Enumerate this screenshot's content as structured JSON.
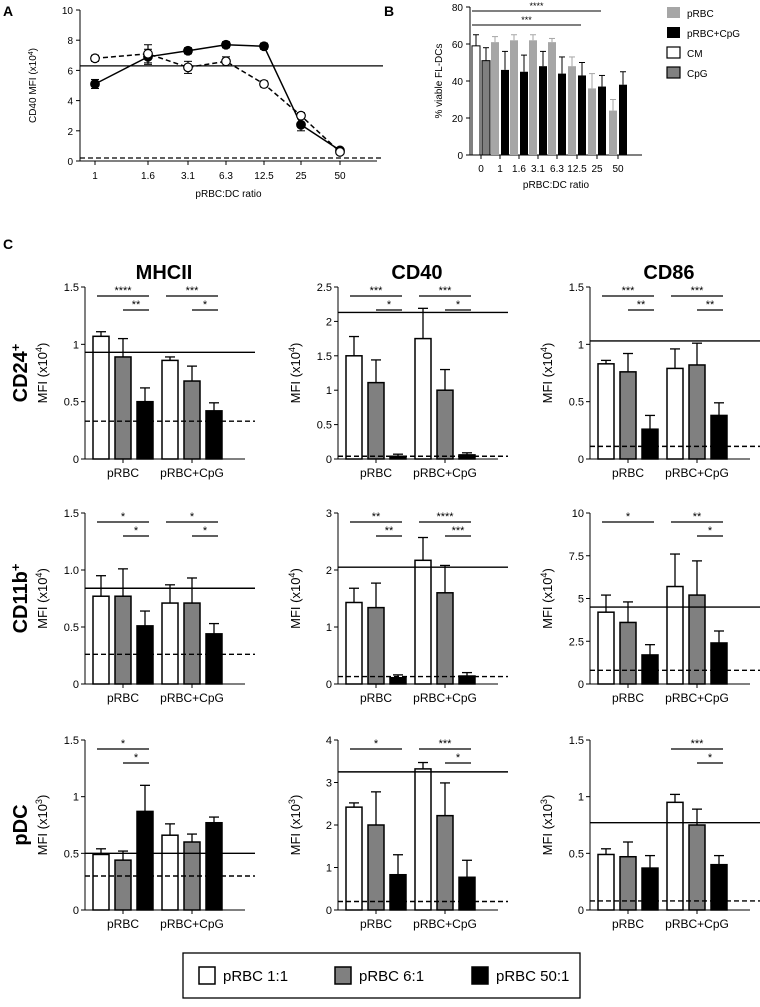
{
  "panel_labels": {
    "a": "A",
    "b": "B",
    "c": "C"
  },
  "chart_data": [
    {
      "id": "A",
      "type": "line",
      "ylabel_main": "CD40 MFI (x10",
      "ylabel_sup": "4",
      "ylabel_end": ")",
      "xlabel": "pRBC:DC ratio",
      "categories": [
        "1",
        "1.6",
        "3.1",
        "6.3",
        "12.5",
        "25",
        "50"
      ],
      "ylim": [
        0,
        10
      ],
      "yticks": [
        "0",
        "2",
        "4",
        "6",
        "8",
        "10"
      ],
      "series": [
        {
          "name": "filled",
          "style": "solid",
          "marker": "filled",
          "values": [
            5.1,
            6.9,
            7.3,
            7.7,
            7.6,
            2.4,
            0.7
          ],
          "errors": [
            0.3,
            0.5,
            0.2,
            0.2,
            0.2,
            0.4,
            0.1
          ]
        },
        {
          "name": "open",
          "style": "dashed",
          "marker": "open",
          "values": [
            6.8,
            7.1,
            6.2,
            6.6,
            5.1,
            3.0,
            0.6
          ],
          "errors": [
            0.2,
            0.6,
            0.4,
            0.3,
            0.2,
            0.2,
            0.1
          ]
        }
      ],
      "hline_solid": 6.3,
      "hline_dashed": 0.2
    },
    {
      "id": "B",
      "type": "bar",
      "ylabel": "% viable FL-DCs",
      "xlabel": "pRBC:DC ratio",
      "categories": [
        "0",
        "1",
        "1.6",
        "3.1",
        "6.3",
        "12.5",
        "25",
        "50"
      ],
      "ylim": [
        0,
        80
      ],
      "yticks": [
        "0",
        "20",
        "40",
        "60",
        "80"
      ],
      "legend": [
        {
          "label": "pRBC",
          "color": "#a6a6a6",
          "outline": false
        },
        {
          "label": "pRBC+CpG",
          "color": "#000000",
          "outline": false
        },
        {
          "label": "CM",
          "color": "#ffffff",
          "outline": true
        },
        {
          "label": "CpG",
          "color": "#808080",
          "outline": true
        }
      ],
      "first_group": [
        {
          "series": "CM",
          "value": 59,
          "error": 6
        },
        {
          "series": "CpG",
          "value": 51,
          "error": 7
        }
      ],
      "pRBC": [
        61,
        62,
        62,
        61,
        48,
        36,
        24
      ],
      "pRBC_err": [
        3,
        3,
        3,
        2,
        5,
        8,
        6
      ],
      "pRBC_CpG": [
        46,
        45,
        48,
        44,
        43,
        37,
        38
      ],
      "pRBC_CpG_err": [
        10,
        9,
        8,
        9,
        7,
        6,
        7
      ],
      "significance": [
        {
          "label": "****",
          "from": "0",
          "to": "25"
        },
        {
          "label": "***",
          "from": "0",
          "to": "12.5"
        }
      ]
    }
  ],
  "panel_c": {
    "columns": [
      "MHCII",
      "CD40",
      "CD86"
    ],
    "rows": [
      {
        "label": "CD24",
        "sup": "+"
      },
      {
        "label": "CD11b",
        "sup": "+"
      },
      {
        "label": "pDC",
        "sup": ""
      }
    ],
    "group_labels": [
      "pRBC",
      "pRBC+CpG"
    ],
    "ylabel_prefix": "MFI (x10",
    "ylabel_suffix": ")",
    "charts": [
      {
        "row": 0,
        "col": 0,
        "type": "bar",
        "exp": "4",
        "ymax": 1.5,
        "yticks": [
          "0",
          "0.5",
          "1",
          "1.5"
        ],
        "values": [
          [
            1.07,
            0.89,
            0.5
          ],
          [
            0.86,
            0.68,
            0.42
          ]
        ],
        "errors": [
          [
            0.04,
            0.16,
            0.12
          ],
          [
            0.03,
            0.13,
            0.07
          ]
        ],
        "hline_solid": 0.93,
        "hline_dashed": 0.33,
        "sig": [
          {
            "g": 0,
            "a": 0,
            "b": 2,
            "label": "****"
          },
          {
            "g": 0,
            "a": 1,
            "b": 2,
            "label": "**"
          },
          {
            "g": 1,
            "a": 0,
            "b": 2,
            "label": "***"
          },
          {
            "g": 1,
            "a": 1,
            "b": 2,
            "label": "*"
          }
        ]
      },
      {
        "row": 0,
        "col": 1,
        "type": "bar",
        "exp": "4",
        "ymax": 2.5,
        "yticks": [
          "0",
          "0.5",
          "1",
          "1.5",
          "2",
          "2.5"
        ],
        "values": [
          [
            1.5,
            1.11,
            0.04
          ],
          [
            1.75,
            1.0,
            0.06
          ]
        ],
        "errors": [
          [
            0.28,
            0.33,
            0.03
          ],
          [
            0.44,
            0.3,
            0.03
          ]
        ],
        "hline_solid": 2.13,
        "hline_dashed": 0.04,
        "sig": [
          {
            "g": 0,
            "a": 0,
            "b": 2,
            "label": "***"
          },
          {
            "g": 0,
            "a": 1,
            "b": 2,
            "label": "*"
          },
          {
            "g": 1,
            "a": 0,
            "b": 2,
            "label": "***"
          },
          {
            "g": 1,
            "a": 1,
            "b": 2,
            "label": "*"
          }
        ]
      },
      {
        "row": 0,
        "col": 2,
        "type": "bar",
        "exp": "4",
        "ymax": 1.5,
        "yticks": [
          "0",
          "0.5",
          "1",
          "1.5"
        ],
        "values": [
          [
            0.83,
            0.76,
            0.26
          ],
          [
            0.79,
            0.82,
            0.38
          ]
        ],
        "errors": [
          [
            0.03,
            0.16,
            0.12
          ],
          [
            0.17,
            0.19,
            0.11
          ]
        ],
        "hline_solid": 1.03,
        "hline_dashed": 0.11,
        "sig": [
          {
            "g": 0,
            "a": 0,
            "b": 2,
            "label": "***"
          },
          {
            "g": 0,
            "a": 1,
            "b": 2,
            "label": "**"
          },
          {
            "g": 1,
            "a": 0,
            "b": 2,
            "label": "***"
          },
          {
            "g": 1,
            "a": 1,
            "b": 2,
            "label": "**"
          }
        ]
      },
      {
        "row": 1,
        "col": 0,
        "type": "bar",
        "exp": "4",
        "ymax": 1.5,
        "yticks": [
          "0",
          "0.5",
          "1.0",
          "1.5"
        ],
        "values": [
          [
            0.77,
            0.77,
            0.51
          ],
          [
            0.71,
            0.71,
            0.44
          ]
        ],
        "errors": [
          [
            0.18,
            0.24,
            0.13
          ],
          [
            0.16,
            0.22,
            0.09
          ]
        ],
        "hline_solid": 0.84,
        "hline_dashed": 0.26,
        "sig": [
          {
            "g": 0,
            "a": 0,
            "b": 2,
            "label": "*"
          },
          {
            "g": 0,
            "a": 1,
            "b": 2,
            "label": "*"
          },
          {
            "g": 1,
            "a": 0,
            "b": 2,
            "label": "*"
          },
          {
            "g": 1,
            "a": 1,
            "b": 2,
            "label": "*"
          }
        ]
      },
      {
        "row": 1,
        "col": 1,
        "type": "bar",
        "exp": "4",
        "ymax": 3,
        "yticks": [
          "0",
          "1",
          "2",
          "3"
        ],
        "values": [
          [
            1.43,
            1.34,
            0.11
          ],
          [
            2.17,
            1.6,
            0.14
          ]
        ],
        "errors": [
          [
            0.25,
            0.43,
            0.05
          ],
          [
            0.4,
            0.48,
            0.06
          ]
        ],
        "hline_solid": 2.05,
        "hline_dashed": 0.13,
        "sig": [
          {
            "g": 0,
            "a": 0,
            "b": 2,
            "label": "**"
          },
          {
            "g": 0,
            "a": 1,
            "b": 2,
            "label": "**"
          },
          {
            "g": 1,
            "a": 0,
            "b": 2,
            "label": "****"
          },
          {
            "g": 1,
            "a": 1,
            "b": 2,
            "label": "***"
          }
        ]
      },
      {
        "row": 1,
        "col": 2,
        "type": "bar",
        "exp": "4",
        "ymax": 10,
        "yticks": [
          "0",
          "2.5",
          "5",
          "7.5",
          "10"
        ],
        "values": [
          [
            4.2,
            3.6,
            1.7
          ],
          [
            5.7,
            5.2,
            2.4
          ]
        ],
        "errors": [
          [
            1.0,
            1.2,
            0.6
          ],
          [
            1.9,
            2.0,
            0.7
          ]
        ],
        "hline_solid": 4.5,
        "hline_dashed": 0.8,
        "sig": [
          {
            "g": 0,
            "a": 0,
            "b": 2,
            "label": "*"
          },
          {
            "g": 1,
            "a": 0,
            "b": 2,
            "label": "**"
          },
          {
            "g": 1,
            "a": 1,
            "b": 2,
            "label": "*"
          }
        ]
      },
      {
        "row": 2,
        "col": 0,
        "type": "bar",
        "exp": "3",
        "ymax": 1.5,
        "yticks": [
          "0",
          "0.5",
          "1",
          "1.5"
        ],
        "values": [
          [
            0.49,
            0.44,
            0.87
          ],
          [
            0.66,
            0.6,
            0.77
          ]
        ],
        "errors": [
          [
            0.05,
            0.08,
            0.23
          ],
          [
            0.1,
            0.07,
            0.05
          ]
        ],
        "hline_solid": 0.5,
        "hline_dashed": 0.3,
        "sig": [
          {
            "g": 0,
            "a": 0,
            "b": 2,
            "label": "*"
          },
          {
            "g": 0,
            "a": 1,
            "b": 2,
            "label": "*"
          }
        ]
      },
      {
        "row": 2,
        "col": 1,
        "type": "bar",
        "exp": "3",
        "ymax": 4,
        "yticks": [
          "0",
          "1",
          "2",
          "3",
          "4"
        ],
        "values": [
          [
            2.42,
            2.0,
            0.83
          ],
          [
            3.32,
            2.22,
            0.77
          ]
        ],
        "errors": [
          [
            0.1,
            0.78,
            0.47
          ],
          [
            0.15,
            0.77,
            0.4
          ]
        ],
        "hline_solid": 3.25,
        "hline_dashed": 0.2,
        "sig": [
          {
            "g": 0,
            "a": 0,
            "b": 2,
            "label": "*"
          },
          {
            "g": 1,
            "a": 0,
            "b": 2,
            "label": "***"
          },
          {
            "g": 1,
            "a": 1,
            "b": 2,
            "label": "*"
          }
        ]
      },
      {
        "row": 2,
        "col": 2,
        "type": "bar",
        "exp": "3",
        "ymax": 1.5,
        "yticks": [
          "0",
          "0.5",
          "1",
          "1.5"
        ],
        "values": [
          [
            0.49,
            0.47,
            0.37
          ],
          [
            0.95,
            0.75,
            0.4
          ]
        ],
        "errors": [
          [
            0.05,
            0.13,
            0.11
          ],
          [
            0.07,
            0.14,
            0.08
          ]
        ],
        "hline_solid": 0.77,
        "hline_dashed": 0.08,
        "sig": [
          {
            "g": 1,
            "a": 0,
            "b": 2,
            "label": "***"
          },
          {
            "g": 1,
            "a": 1,
            "b": 2,
            "label": "*"
          }
        ]
      }
    ]
  },
  "bottom_legend": [
    {
      "label": "pRBC 1:1",
      "color": "#ffffff"
    },
    {
      "label": "pRBC 6:1",
      "color": "#808080"
    },
    {
      "label": "pRBC 50:1",
      "color": "#000000"
    }
  ]
}
